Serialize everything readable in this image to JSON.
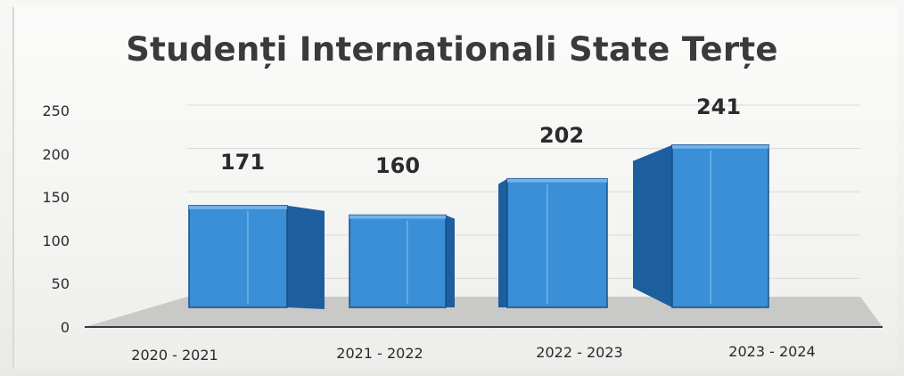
{
  "chart_data": {
    "type": "bar",
    "title": "Studenți Internationali State Terțe",
    "categories": [
      "2020 - 2021",
      "2021 - 2022",
      "2022 - 2023",
      "2023 - 2024"
    ],
    "values": [
      171,
      160,
      202,
      241
    ],
    "data_labels": [
      "171",
      "160",
      "202",
      "241"
    ],
    "yticks": [
      "0",
      "50",
      "100",
      "150",
      "200",
      "250"
    ],
    "ylim": [
      0,
      250
    ],
    "xlabel": "",
    "ylabel": "",
    "style": "3d-column",
    "grid": true,
    "legend": "none",
    "colors": {
      "front": "#3a8fd6",
      "side": "#1d5f9e",
      "top": "#6fb4ee",
      "edge": "#1b4f85"
    }
  }
}
